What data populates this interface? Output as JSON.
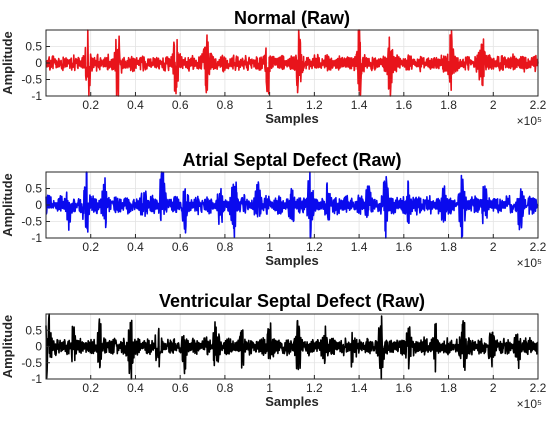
{
  "chart_data": [
    {
      "type": "line",
      "title": "Normal (Raw)",
      "xlabel": "Samples",
      "ylabel": "Amplitude",
      "x_exponent": "×10⁵",
      "xlim": [
        0,
        2.2
      ],
      "ylim": [
        -1,
        1
      ],
      "x_ticks": [
        "0.2",
        "0.4",
        "0.6",
        "0.8",
        "1",
        "1.2",
        "1.4",
        "1.6",
        "1.8",
        "2",
        "2.2"
      ],
      "y_ticks": [
        "0.5",
        "0",
        "-0.5",
        "-1"
      ],
      "grid": true,
      "color": "#e8141b",
      "series": [
        {
          "signal": "raw heart sound waveform",
          "heavy_beats_x": [
            0.19,
            0.32,
            0.58,
            0.72,
            0.99,
            1.13,
            1.4,
            1.54,
            1.81,
            1.95
          ],
          "peak_amplitude": 1.0,
          "baseline_amplitude": 0.28
        }
      ]
    },
    {
      "type": "line",
      "title": "Atrial Septal Defect (Raw)",
      "xlabel": "Samples",
      "ylabel": "Amplitude",
      "x_exponent": "×10⁵",
      "xlim": [
        0,
        2.2
      ],
      "ylim": [
        -1,
        1
      ],
      "x_ticks": [
        "0.2",
        "0.4",
        "0.6",
        "0.8",
        "1",
        "1.2",
        "1.4",
        "1.6",
        "1.8",
        "2",
        "2.2"
      ],
      "y_ticks": [
        "0.5",
        "0",
        "-0.5",
        "-1"
      ],
      "grid": true,
      "color": "#0a0aee",
      "series": [
        {
          "signal": "raw heart sound waveform",
          "heavy_beats_x": [
            0.18,
            0.52,
            0.84,
            1.18,
            1.52,
            1.86
          ],
          "light_beats_x": [
            0.1,
            0.26,
            0.44,
            0.62,
            0.78,
            0.95,
            1.1,
            1.26,
            1.44,
            1.62,
            1.78,
            1.96,
            2.12
          ],
          "peak_amplitude": 1.0,
          "baseline_amplitude": 0.32
        }
      ]
    },
    {
      "type": "line",
      "title": "Ventricular Septal Defect (Raw)",
      "xlabel": "Samples",
      "ylabel": "Amplitude",
      "x_exponent": "×10⁵",
      "xlim": [
        0,
        2.2
      ],
      "ylim": [
        -1,
        1
      ],
      "x_ticks": [
        "0.2",
        "0.4",
        "0.6",
        "0.8",
        "1",
        "1.2",
        "1.4",
        "1.6",
        "1.8",
        "2",
        "2.2"
      ],
      "y_ticks": [
        "0.5",
        "0",
        "-0.5",
        "-1"
      ],
      "grid": true,
      "color": "#000000",
      "series": [
        {
          "signal": "raw heart sound waveform",
          "heavy_beats_x": [
            0.01,
            0.38,
            0.76,
            1.13,
            1.5,
            1.87
          ],
          "light_beats_x": [
            0.12,
            0.24,
            0.5,
            0.62,
            0.88,
            1.0,
            1.25,
            1.37,
            1.62,
            1.74,
            1.99,
            2.11
          ],
          "peak_amplitude": 1.0,
          "baseline_amplitude": 0.3
        }
      ]
    }
  ]
}
